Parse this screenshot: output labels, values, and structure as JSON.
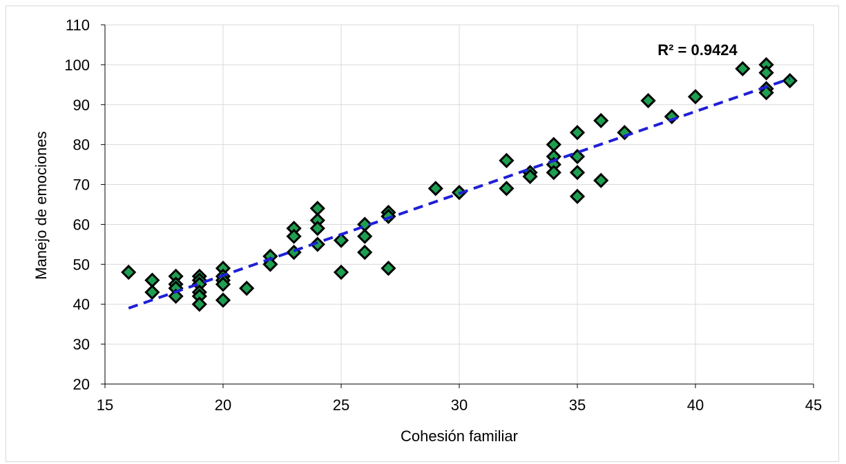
{
  "chart_data": {
    "type": "scatter",
    "title": "",
    "xlabel": "Cohesión familiar",
    "ylabel": "Manejo de emociones",
    "xlim": [
      15,
      45
    ],
    "ylim": [
      20,
      110
    ],
    "xticks": [
      15,
      20,
      25,
      30,
      35,
      40,
      45
    ],
    "yticks": [
      20,
      30,
      40,
      50,
      60,
      70,
      80,
      90,
      100,
      110
    ],
    "grid": true,
    "legend": "none",
    "marker": {
      "shape": "diamond",
      "fill": "#1e9e50",
      "stroke": "#000000"
    },
    "trendline": {
      "type": "linear",
      "color": "#1f1fd6",
      "dash": true,
      "x_range": [
        16,
        44
      ],
      "y_range": [
        39,
        96.5
      ]
    },
    "annotation": "R² = 0.9424",
    "series": [
      {
        "points": [
          [
            16,
            48
          ],
          [
            17,
            46
          ],
          [
            17,
            43
          ],
          [
            18,
            47
          ],
          [
            18,
            45
          ],
          [
            18,
            44
          ],
          [
            18,
            42
          ],
          [
            19,
            47
          ],
          [
            19,
            46
          ],
          [
            19,
            45
          ],
          [
            19,
            43
          ],
          [
            19,
            42
          ],
          [
            19,
            40
          ],
          [
            20,
            49
          ],
          [
            20,
            47
          ],
          [
            20,
            46
          ],
          [
            20,
            45
          ],
          [
            20,
            41
          ],
          [
            21,
            44
          ],
          [
            22,
            52
          ],
          [
            22,
            50
          ],
          [
            23,
            59
          ],
          [
            23,
            57
          ],
          [
            23,
            53
          ],
          [
            24,
            64
          ],
          [
            24,
            61
          ],
          [
            24,
            59
          ],
          [
            24,
            55
          ],
          [
            25,
            56
          ],
          [
            25,
            48
          ],
          [
            26,
            60
          ],
          [
            26,
            57
          ],
          [
            26,
            53
          ],
          [
            27,
            63
          ],
          [
            27,
            62
          ],
          [
            27,
            49
          ],
          [
            29,
            69
          ],
          [
            30,
            68
          ],
          [
            32,
            76
          ],
          [
            32,
            69
          ],
          [
            33,
            73
          ],
          [
            33,
            72
          ],
          [
            34,
            80
          ],
          [
            34,
            77
          ],
          [
            34,
            75
          ],
          [
            34,
            73
          ],
          [
            35,
            83
          ],
          [
            35,
            77
          ],
          [
            35,
            73
          ],
          [
            35,
            67
          ],
          [
            36,
            86
          ],
          [
            36,
            71
          ],
          [
            37,
            83
          ],
          [
            38,
            91
          ],
          [
            39,
            87
          ],
          [
            40,
            92
          ],
          [
            42,
            99
          ],
          [
            43,
            100
          ],
          [
            43,
            98
          ],
          [
            43,
            94
          ],
          [
            43,
            93
          ],
          [
            44,
            96
          ]
        ]
      }
    ]
  }
}
